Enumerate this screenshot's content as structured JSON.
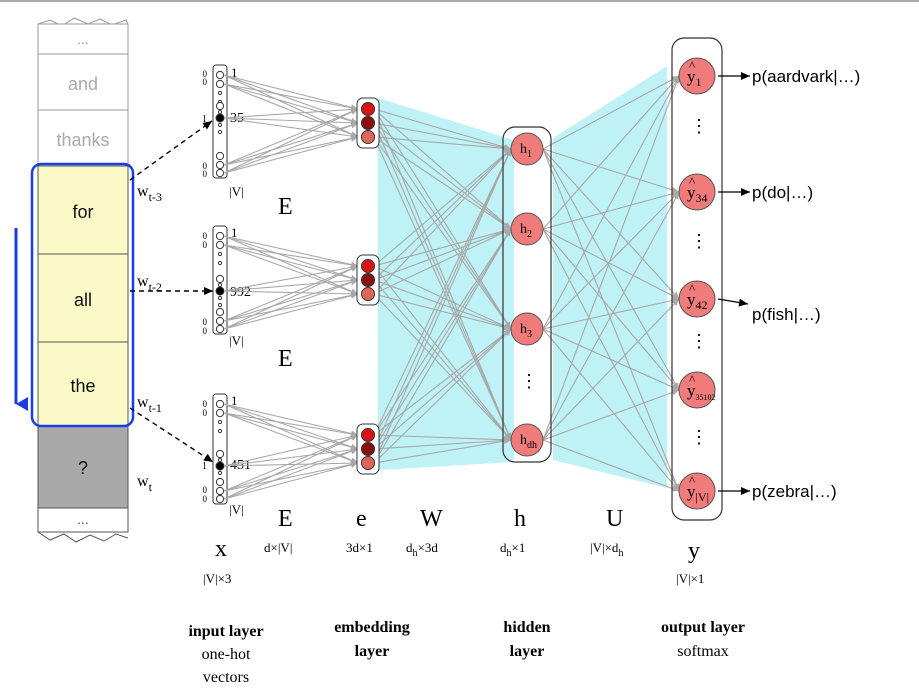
{
  "tape": {
    "top_ellipsis": "...",
    "context_words": [
      "and",
      "thanks"
    ],
    "window_words": [
      "for",
      "all",
      "the"
    ],
    "target_word": "?",
    "bottom_ellipsis": "..."
  },
  "word_labels": {
    "w_t3": {
      "base": "w",
      "sub": "t-3"
    },
    "w_t2": {
      "base": "w",
      "sub": "t-2"
    },
    "w_t1": {
      "base": "w",
      "sub": "t-1"
    },
    "w_t": {
      "base": "w",
      "sub": "t"
    }
  },
  "onehot": [
    {
      "top_index": "1",
      "active_index": "35",
      "active_left": "1",
      "size_label": "|V|",
      "zeros": "0"
    },
    {
      "top_index": "1",
      "active_index": "992",
      "active_left": "",
      "size_label": "|V|",
      "zeros": "0"
    },
    {
      "top_index": "1",
      "active_index": "451",
      "active_left": "1",
      "size_label": "|V|",
      "zeros": "0"
    }
  ],
  "E_labels": [
    "E",
    "E",
    "E"
  ],
  "hidden_nodes": [
    {
      "base": "h",
      "sub": "1"
    },
    {
      "base": "h",
      "sub": "2"
    },
    {
      "base": "h",
      "sub": "3"
    },
    {
      "base": "h",
      "sub": "dh"
    }
  ],
  "vdots": "⋮",
  "output_nodes": [
    {
      "base": "y",
      "sub": "1",
      "prob": "p(aardvark|…)"
    },
    {
      "base": "y",
      "sub": "34",
      "prob": "p(do|…)"
    },
    {
      "base": "y",
      "sub": "42",
      "prob": "p(fish|…)"
    },
    {
      "base": "y",
      "sub": "35102",
      "prob": ""
    },
    {
      "base": "y",
      "sub": "|V|",
      "prob": "p(zebra|…)"
    }
  ],
  "bottom_row": {
    "x": "x",
    "x_dim": "|V|×3",
    "E": "E",
    "E_dim": "d×|V|",
    "e": "e",
    "e_dim": "3d×1",
    "W": "W",
    "W_dim_base": "d",
    "W_dim_sub": "h",
    "W_dim_rest": "×3d",
    "h": "h",
    "h_dim_base": "d",
    "h_dim_sub": "h",
    "h_dim_rest": "×1",
    "U": "U",
    "U_dim_pre": "|V|×d",
    "U_dim_sub": "h",
    "y": "y",
    "y_dim": "|V|×1"
  },
  "layer_captions": [
    {
      "title": "input layer",
      "sub1": "one-hot",
      "sub2": "vectors"
    },
    {
      "title": "embedding",
      "title2": "layer",
      "sub1": "",
      "sub2": ""
    },
    {
      "title": "hidden",
      "title2": "layer",
      "sub1": "",
      "sub2": ""
    },
    {
      "title": "output layer",
      "sub1": "softmax",
      "sub2": ""
    }
  ],
  "colors": {
    "cyan": "#bff2f6",
    "yellow": "#fafac8",
    "gray_box": "#a9a9a9",
    "blue": "#1a3ee6",
    "node_red": "#ef7b7b",
    "dark_red": "#8b1010",
    "bright_red": "#d81414",
    "mid_red": "#e0665a",
    "line_gray": "#a8a8a8"
  }
}
